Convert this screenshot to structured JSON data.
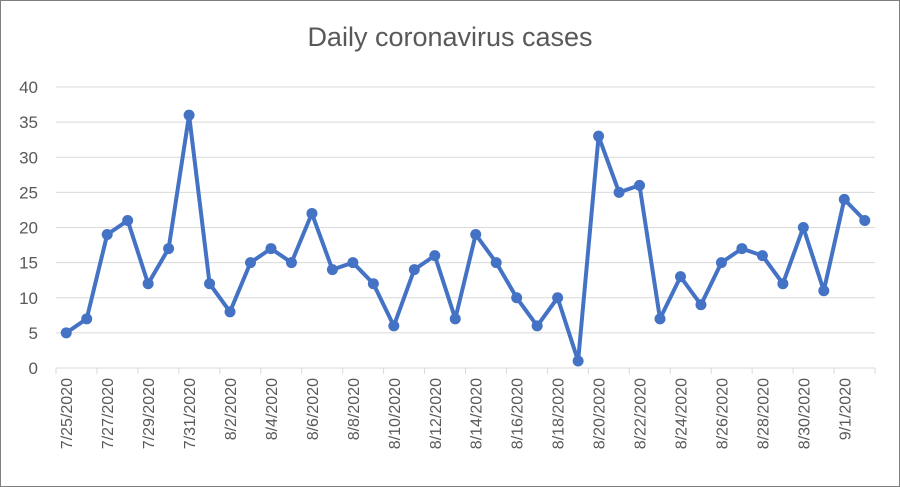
{
  "chart_data": {
    "type": "line",
    "title": "Daily coronavirus cases",
    "xlabel": "",
    "ylabel": "",
    "ylim": [
      0,
      40
    ],
    "y_ticks": [
      0,
      5,
      10,
      15,
      20,
      25,
      30,
      35,
      40
    ],
    "grid": "horizontal",
    "legend": "none",
    "x_tick_labels": [
      "7/25/2020",
      "7/27/2020",
      "7/29/2020",
      "7/31/2020",
      "8/2/2020",
      "8/4/2020",
      "8/6/2020",
      "8/8/2020",
      "8/10/2020",
      "8/12/2020",
      "8/14/2020",
      "8/16/2020",
      "8/18/2020",
      "8/20/2020",
      "8/22/2020",
      "8/24/2020",
      "8/26/2020",
      "8/28/2020",
      "8/30/2020",
      "9/1/2020"
    ],
    "colors": {
      "line": "#4472c4",
      "grid": "#d9d9d9",
      "text": "#595959"
    },
    "series": [
      {
        "x": [
          "7/25/2020",
          "7/26/2020",
          "7/27/2020",
          "7/28/2020",
          "7/29/2020",
          "7/30/2020",
          "7/31/2020",
          "8/1/2020",
          "8/2/2020",
          "8/3/2020",
          "8/4/2020",
          "8/5/2020",
          "8/6/2020",
          "8/7/2020",
          "8/8/2020",
          "8/9/2020",
          "8/10/2020",
          "8/11/2020",
          "8/12/2020",
          "8/13/2020",
          "8/14/2020",
          "8/15/2020",
          "8/16/2020",
          "8/17/2020",
          "8/18/2020",
          "8/19/2020",
          "8/20/2020",
          "8/21/2020",
          "8/22/2020",
          "8/23/2020",
          "8/24/2020",
          "8/25/2020",
          "8/26/2020",
          "8/27/2020",
          "8/28/2020",
          "8/29/2020",
          "8/30/2020",
          "8/31/2020",
          "9/1/2020",
          "9/2/2020"
        ],
        "values": [
          5,
          7,
          19,
          21,
          12,
          17,
          36,
          12,
          8,
          15,
          17,
          15,
          22,
          14,
          15,
          12,
          6,
          14,
          16,
          7,
          19,
          15,
          10,
          6,
          10,
          1,
          33,
          25,
          26,
          7,
          13,
          9,
          15,
          17,
          16,
          12,
          20,
          11,
          24,
          21
        ]
      }
    ]
  }
}
